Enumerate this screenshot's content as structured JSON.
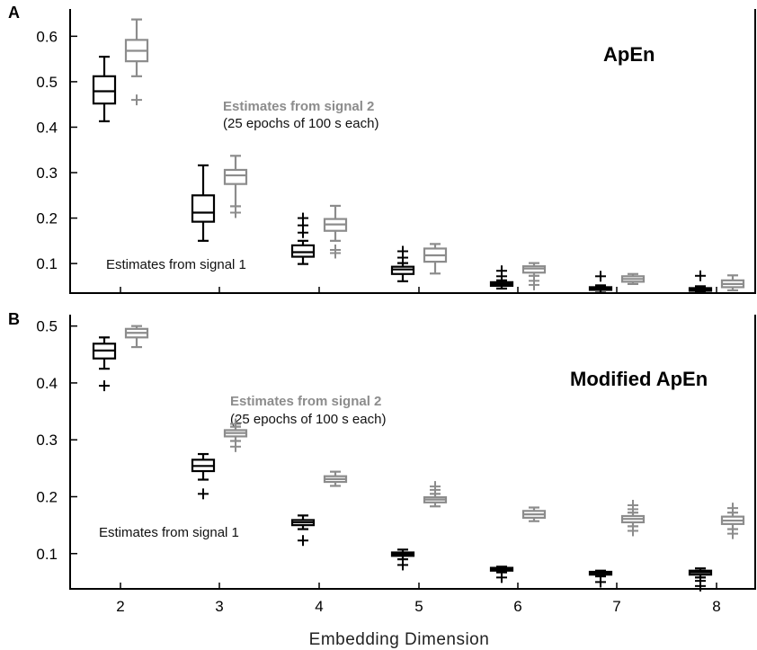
{
  "chart_data": [
    {
      "panel": "A",
      "title": "ApEn",
      "type": "box",
      "xlabel": "Embedding Dimension",
      "categories": [
        2,
        3,
        4,
        5,
        6,
        7,
        8
      ],
      "ylim": [
        0.035,
        0.66
      ],
      "yticks": [
        "0.1",
        "0.2",
        "0.3",
        "0.4",
        "0.5",
        "0.6"
      ],
      "annotations": {
        "signal2_line1": "Estimates from signal 2",
        "signal2_line2": "(25 epochs of 100 s each)",
        "signal1": "Estimates from signal 1"
      },
      "series": [
        {
          "name": "Estimates from signal 1",
          "color": "#000000",
          "boxes": [
            {
              "x": 2,
              "min": 0.413,
              "q1": 0.452,
              "median": 0.479,
              "q3": 0.512,
              "max": 0.555,
              "outliers": []
            },
            {
              "x": 3,
              "min": 0.15,
              "q1": 0.192,
              "median": 0.212,
              "q3": 0.25,
              "max": 0.316,
              "outliers": []
            },
            {
              "x": 4,
              "min": 0.099,
              "q1": 0.115,
              "median": 0.125,
              "q3": 0.14,
              "max": 0.15,
              "outliers": [
                0.168,
                0.184,
                0.2
              ]
            },
            {
              "x": 5,
              "min": 0.061,
              "q1": 0.077,
              "median": 0.087,
              "q3": 0.093,
              "max": 0.101,
              "outliers": [
                0.113,
                0.127
              ]
            },
            {
              "x": 6,
              "min": 0.045,
              "q1": 0.051,
              "median": 0.055,
              "q3": 0.059,
              "max": 0.063,
              "outliers": [
                0.072,
                0.084
              ]
            },
            {
              "x": 7,
              "min": 0.036,
              "q1": 0.042,
              "median": 0.045,
              "q3": 0.048,
              "max": 0.052,
              "outliers": [
                0.072
              ]
            },
            {
              "x": 8,
              "min": 0.036,
              "q1": 0.04,
              "median": 0.043,
              "q3": 0.046,
              "max": 0.05,
              "outliers": [
                0.073
              ]
            }
          ]
        },
        {
          "name": "Estimates from signal 2",
          "color": "#8c8c8c",
          "boxes": [
            {
              "x": 2,
              "min": 0.512,
              "q1": 0.545,
              "median": 0.568,
              "q3": 0.592,
              "max": 0.637,
              "outliers": [
                0.46
              ]
            },
            {
              "x": 3,
              "min": 0.226,
              "q1": 0.275,
              "median": 0.294,
              "q3": 0.306,
              "max": 0.337,
              "outliers": [
                0.212
              ]
            },
            {
              "x": 4,
              "min": 0.15,
              "q1": 0.172,
              "median": 0.186,
              "q3": 0.198,
              "max": 0.227,
              "outliers": [
                0.123,
                0.13
              ]
            },
            {
              "x": 5,
              "min": 0.078,
              "q1": 0.104,
              "median": 0.118,
              "q3": 0.133,
              "max": 0.143,
              "outliers": []
            },
            {
              "x": 6,
              "min": 0.073,
              "q1": 0.08,
              "median": 0.089,
              "q3": 0.094,
              "max": 0.101,
              "outliers": [
                0.053,
                0.062
              ]
            },
            {
              "x": 7,
              "min": 0.055,
              "q1": 0.06,
              "median": 0.066,
              "q3": 0.072,
              "max": 0.077,
              "outliers": []
            },
            {
              "x": 8,
              "min": 0.041,
              "q1": 0.048,
              "median": 0.055,
              "q3": 0.063,
              "max": 0.074,
              "outliers": []
            }
          ]
        }
      ]
    },
    {
      "panel": "B",
      "title": "Modified ApEn",
      "type": "box",
      "xlabel": "Embedding Dimension",
      "categories": [
        2,
        3,
        4,
        5,
        6,
        7,
        8
      ],
      "ylim": [
        0.038,
        0.52
      ],
      "yticks": [
        "0.1",
        "0.2",
        "0.3",
        "0.4",
        "0.5"
      ],
      "annotations": {
        "signal2_line1": "Estimates from signal 2",
        "signal2_line2": "(25 epochs of 100 s each)",
        "signal1": "Estimates from signal 1"
      },
      "series": [
        {
          "name": "Estimates from signal 1",
          "color": "#000000",
          "boxes": [
            {
              "x": 2,
              "min": 0.425,
              "q1": 0.443,
              "median": 0.457,
              "q3": 0.469,
              "max": 0.48,
              "outliers": [
                0.395
              ]
            },
            {
              "x": 3,
              "min": 0.23,
              "q1": 0.245,
              "median": 0.254,
              "q3": 0.265,
              "max": 0.275,
              "outliers": [
                0.205
              ]
            },
            {
              "x": 4,
              "min": 0.143,
              "q1": 0.15,
              "median": 0.155,
              "q3": 0.159,
              "max": 0.167,
              "outliers": [
                0.123
              ]
            },
            {
              "x": 5,
              "min": 0.09,
              "q1": 0.096,
              "median": 0.099,
              "q3": 0.102,
              "max": 0.107,
              "outliers": [
                0.08
              ]
            },
            {
              "x": 6,
              "min": 0.067,
              "q1": 0.07,
              "median": 0.073,
              "q3": 0.075,
              "max": 0.077,
              "outliers": [
                0.058
              ]
            },
            {
              "x": 7,
              "min": 0.06,
              "q1": 0.063,
              "median": 0.066,
              "q3": 0.068,
              "max": 0.07,
              "outliers": [
                0.05
              ]
            },
            {
              "x": 8,
              "min": 0.058,
              "q1": 0.063,
              "median": 0.067,
              "q3": 0.07,
              "max": 0.074,
              "outliers": [
                0.043,
                0.052
              ]
            }
          ]
        },
        {
          "name": "Estimates from signal 2",
          "color": "#8c8c8c",
          "boxes": [
            {
              "x": 2,
              "min": 0.463,
              "q1": 0.48,
              "median": 0.488,
              "q3": 0.495,
              "max": 0.5,
              "outliers": []
            },
            {
              "x": 3,
              "min": 0.298,
              "q1": 0.306,
              "median": 0.312,
              "q3": 0.317,
              "max": 0.323,
              "outliers": [
                0.288,
                0.328
              ]
            },
            {
              "x": 4,
              "min": 0.219,
              "q1": 0.226,
              "median": 0.231,
              "q3": 0.236,
              "max": 0.244,
              "outliers": []
            },
            {
              "x": 5,
              "min": 0.183,
              "q1": 0.19,
              "median": 0.195,
              "q3": 0.199,
              "max": 0.205,
              "outliers": [
                0.212,
                0.218
              ]
            },
            {
              "x": 6,
              "min": 0.157,
              "q1": 0.163,
              "median": 0.169,
              "q3": 0.175,
              "max": 0.181,
              "outliers": []
            },
            {
              "x": 7,
              "min": 0.148,
              "q1": 0.155,
              "median": 0.161,
              "q3": 0.166,
              "max": 0.172,
              "outliers": [
                0.14,
                0.178,
                0.185
              ]
            },
            {
              "x": 8,
              "min": 0.143,
              "q1": 0.152,
              "median": 0.158,
              "q3": 0.165,
              "max": 0.172,
              "outliers": [
                0.135,
                0.18
              ]
            }
          ]
        }
      ]
    }
  ]
}
